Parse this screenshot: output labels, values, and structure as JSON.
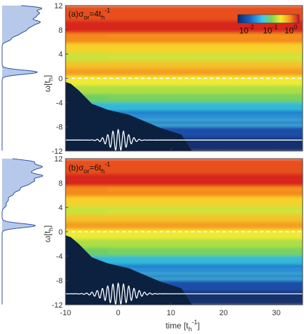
{
  "chart_data": [
    {
      "type": "heatmap",
      "panel_label": "(a)σ",
      "panel_label_sub": "or",
      "panel_label_rest": "=4t",
      "panel_label_sub2": "h",
      "panel_label_sup": "-1",
      "x_range": [
        -10,
        35
      ],
      "y_range": [
        -12,
        12
      ],
      "ylabel": "ω[t",
      "ylabel_sub": "h",
      "ylabel_end": "]",
      "yticks": [
        "12",
        "8",
        "4",
        "0",
        "-4",
        "-8",
        "-12"
      ],
      "xticks": [],
      "log_scale": true,
      "colorbar": {
        "ticks": [
          "10",
          "10",
          "10"
        ],
        "exponents": [
          "-2",
          "-1",
          "0"
        ],
        "placement": "top-right"
      },
      "pulse_sigma": 4,
      "spectrum_peaks": [
        {
          "omega": 11.6,
          "amp": 0.95
        },
        {
          "omega": 10.8,
          "amp": 0.8
        },
        {
          "omega": 10.1,
          "amp": 0.7
        },
        {
          "omega": 9.3,
          "amp": 0.85
        },
        {
          "omega": 8.6,
          "amp": 0.6
        },
        {
          "omega": 7.9,
          "amp": 0.5
        },
        {
          "omega": 7.2,
          "amp": 0.35
        },
        {
          "omega": 6.4,
          "amp": 0.2
        },
        {
          "omega": 1.0,
          "amp": 0.9
        }
      ]
    },
    {
      "type": "heatmap",
      "panel_label": "(b)σ",
      "panel_label_sub": "or",
      "panel_label_rest": "=6t",
      "panel_label_sub2": "h",
      "panel_label_sup": "-1",
      "x_range": [
        -10,
        35
      ],
      "y_range": [
        -12,
        12
      ],
      "ylabel": "ω[t",
      "ylabel_sub": "h",
      "ylabel_end": "]",
      "yticks": [
        "12",
        "8",
        "4",
        "0",
        "-4",
        "-8",
        "-12"
      ],
      "xticks": [
        "-10",
        "0",
        "10",
        "20",
        "30"
      ],
      "xlabel": "time [t",
      "xlabel_sub": "h",
      "xlabel_sup": "-1",
      "xlabel_end": "]",
      "log_scale": true,
      "pulse_sigma": 6,
      "spectrum_peaks": [
        {
          "omega": 11.5,
          "amp": 0.75
        },
        {
          "omega": 10.7,
          "amp": 0.9
        },
        {
          "omega": 10.0,
          "amp": 0.6
        },
        {
          "omega": 9.2,
          "amp": 0.95
        },
        {
          "omega": 8.4,
          "amp": 0.7
        },
        {
          "omega": 7.7,
          "amp": 0.55
        },
        {
          "omega": 6.9,
          "amp": 0.4
        },
        {
          "omega": 6.1,
          "amp": 0.25
        },
        {
          "omega": 5.2,
          "amp": 0.15
        },
        {
          "omega": 4.3,
          "amp": 0.1
        },
        {
          "omega": 1.0,
          "amp": 0.85
        }
      ]
    }
  ]
}
